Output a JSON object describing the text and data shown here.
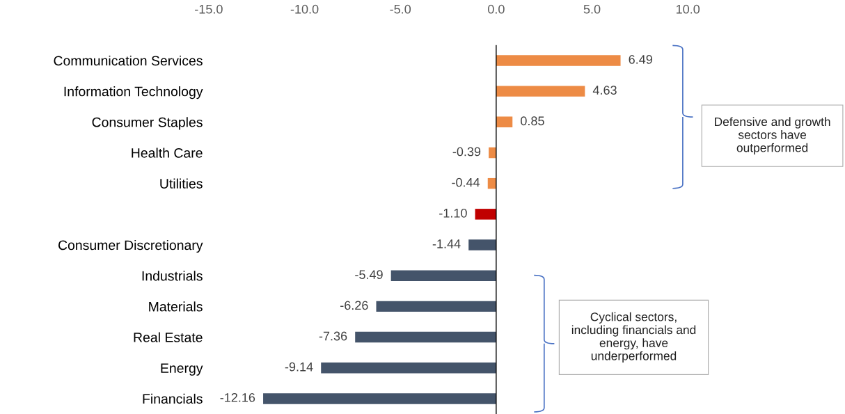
{
  "chart_data": {
    "type": "bar",
    "orientation": "horizontal",
    "categories": [
      "Communication Services",
      "Information Technology",
      "Consumer Staples",
      "Health Care",
      "Utilities",
      null,
      "Consumer Discretionary",
      "Industrials",
      "Materials",
      "Real Estate",
      "Energy",
      "Financials"
    ],
    "values": [
      6.49,
      4.63,
      0.85,
      -0.39,
      -0.44,
      -1.1,
      -1.44,
      -5.49,
      -6.26,
      -7.36,
      -9.14,
      -12.16
    ],
    "value_labels": [
      "6.49",
      "4.63",
      "0.85",
      "-0.39",
      "-0.44",
      "-1.10",
      "-1.44",
      "-5.49",
      "-6.26",
      "-7.36",
      "-9.14",
      "-12.16"
    ],
    "colors": [
      "#ed8b45",
      "#ed8b45",
      "#ed8b45",
      "#ed8b45",
      "#ed8b45",
      "#c00000",
      "#44546a",
      "#44546a",
      "#44546a",
      "#44546a",
      "#44546a",
      "#44546a"
    ],
    "xlim": [
      -15,
      10
    ],
    "xticks": [
      {
        "value": -15,
        "label": "-15.0"
      },
      {
        "value": -10,
        "label": "-10.0"
      },
      {
        "value": -5,
        "label": "-5.0"
      },
      {
        "value": 0,
        "label": "0.0"
      },
      {
        "value": 5,
        "label": "5.0"
      },
      {
        "value": 10,
        "label": "10.0"
      }
    ],
    "ref_lines": [
      {
        "axis": "x",
        "value": 0,
        "label": null,
        "color": "#000000"
      }
    ],
    "grid": false,
    "legend": false,
    "annotations": [
      "Defensive and growth sectors have outperformed",
      "Cyclical sectors, including financials and energy, have underperformed"
    ]
  }
}
